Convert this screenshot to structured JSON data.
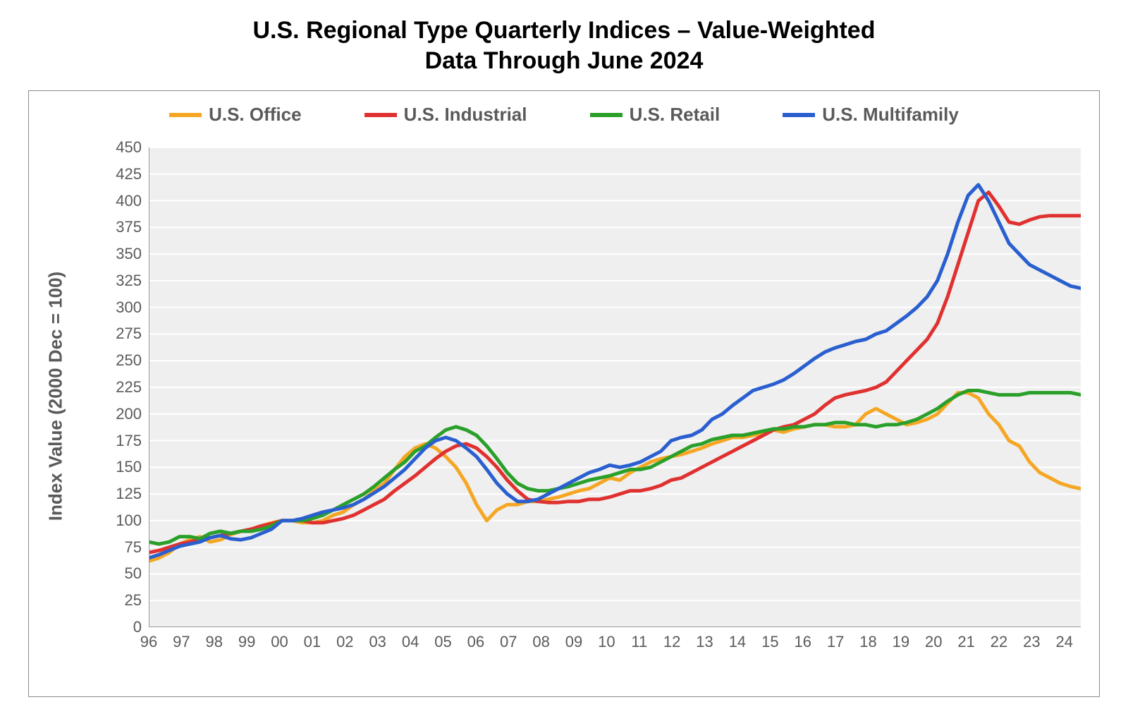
{
  "title": {
    "line1": "U.S. Regional Type Quarterly Indices – Value-Weighted",
    "line2": "Data Through June 2024",
    "fontsize": 34,
    "color": "#000000"
  },
  "chart": {
    "type": "line",
    "background_color": "#ffffff",
    "frame_border_color": "#8a8a8a",
    "plot_background_color": "#efefef",
    "grid_color": "#ffffff",
    "axis_line_color": "#9a9a9a",
    "tick_font_color": "#5a5a5a",
    "tick_fontsize": 22,
    "axis_title_fontsize": 26,
    "axis_title_color": "#5a5a5a",
    "line_width": 5,
    "y_axis": {
      "title": "Index Value (2000 Dec = 100)",
      "min": 0,
      "max": 450,
      "tick_step": 25,
      "ticks": [
        0,
        25,
        50,
        75,
        100,
        125,
        150,
        175,
        200,
        225,
        250,
        275,
        300,
        325,
        350,
        375,
        400,
        425,
        450
      ]
    },
    "x_axis": {
      "labels": [
        "96",
        "97",
        "98",
        "99",
        "00",
        "01",
        "02",
        "03",
        "04",
        "05",
        "06",
        "07",
        "08",
        "09",
        "10",
        "11",
        "12",
        "13",
        "14",
        "15",
        "16",
        "17",
        "18",
        "19",
        "20",
        "21",
        "22",
        "23",
        "24"
      ],
      "min_index": 0,
      "max_index": 28.5
    },
    "legend": {
      "items": [
        {
          "label": "U.S. Office",
          "color": "#f5a623"
        },
        {
          "label": "U.S. Industrial",
          "color": "#e03131"
        },
        {
          "label": "U.S. Retail",
          "color": "#2aa02a"
        },
        {
          "label": "U.S. Multifamily",
          "color": "#2a5fd0"
        }
      ],
      "fontsize": 26,
      "font_color": "#5a5a5a"
    },
    "series": [
      {
        "name": "U.S. Office",
        "color": "#f5a623",
        "values": [
          62,
          65,
          70,
          78,
          82,
          85,
          80,
          82,
          87,
          90,
          92,
          95,
          98,
          100,
          100,
          98,
          98,
          100,
          105,
          108,
          115,
          120,
          128,
          135,
          148,
          160,
          168,
          172,
          168,
          160,
          150,
          135,
          115,
          100,
          110,
          115,
          115,
          118,
          118,
          120,
          122,
          125,
          128,
          130,
          135,
          140,
          138,
          145,
          150,
          155,
          158,
          160,
          162,
          165,
          168,
          172,
          175,
          178,
          178,
          180,
          182,
          185,
          183,
          186,
          188,
          190,
          190,
          188,
          188,
          190,
          200,
          205,
          200,
          195,
          190,
          192,
          195,
          200,
          210,
          220,
          220,
          215,
          200,
          190,
          175,
          170,
          155,
          145,
          140,
          135,
          132,
          130
        ]
      },
      {
        "name": "U.S. Industrial",
        "color": "#e03131",
        "values": [
          70,
          72,
          75,
          78,
          80,
          82,
          84,
          86,
          88,
          90,
          92,
          95,
          97,
          100,
          100,
          100,
          98,
          98,
          100,
          102,
          105,
          110,
          115,
          120,
          128,
          135,
          142,
          150,
          158,
          165,
          170,
          172,
          168,
          160,
          150,
          138,
          128,
          120,
          118,
          117,
          117,
          118,
          118,
          120,
          120,
          122,
          125,
          128,
          128,
          130,
          133,
          138,
          140,
          145,
          150,
          155,
          160,
          165,
          170,
          175,
          180,
          185,
          188,
          190,
          195,
          200,
          208,
          215,
          218,
          220,
          222,
          225,
          230,
          240,
          250,
          260,
          270,
          285,
          310,
          340,
          370,
          400,
          408,
          395,
          380,
          378,
          382,
          385,
          386,
          386,
          386,
          386
        ]
      },
      {
        "name": "U.S. Retail",
        "color": "#2aa02a",
        "values": [
          80,
          78,
          80,
          85,
          85,
          83,
          88,
          90,
          88,
          90,
          90,
          92,
          95,
          100,
          100,
          100,
          102,
          105,
          110,
          115,
          120,
          125,
          132,
          140,
          148,
          155,
          165,
          170,
          178,
          185,
          188,
          185,
          180,
          170,
          158,
          145,
          135,
          130,
          128,
          128,
          130,
          132,
          135,
          138,
          140,
          142,
          145,
          148,
          148,
          150,
          155,
          160,
          165,
          170,
          172,
          176,
          178,
          180,
          180,
          182,
          184,
          186,
          186,
          188,
          188,
          190,
          190,
          192,
          192,
          190,
          190,
          188,
          190,
          190,
          192,
          195,
          200,
          205,
          212,
          218,
          222,
          222,
          220,
          218,
          218,
          218,
          220,
          220,
          220,
          220,
          220,
          218
        ]
      },
      {
        "name": "U.S. Multifamily",
        "color": "#2a5fd0",
        "values": [
          65,
          68,
          72,
          76,
          78,
          80,
          84,
          86,
          83,
          82,
          84,
          88,
          92,
          100,
          100,
          102,
          105,
          108,
          110,
          112,
          115,
          120,
          126,
          132,
          140,
          148,
          158,
          168,
          175,
          178,
          175,
          168,
          160,
          148,
          135,
          125,
          118,
          118,
          120,
          125,
          130,
          135,
          140,
          145,
          148,
          152,
          150,
          152,
          155,
          160,
          165,
          175,
          178,
          180,
          185,
          195,
          200,
          208,
          215,
          222,
          225,
          228,
          232,
          238,
          245,
          252,
          258,
          262,
          265,
          268,
          270,
          275,
          278,
          285,
          292,
          300,
          310,
          325,
          350,
          380,
          405,
          415,
          400,
          380,
          360,
          350,
          340,
          335,
          330,
          325,
          320,
          318
        ]
      }
    ]
  }
}
